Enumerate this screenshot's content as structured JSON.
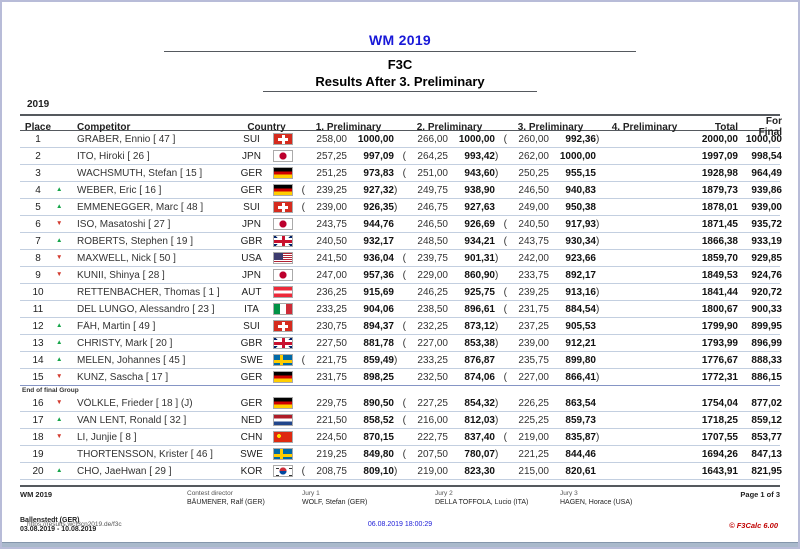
{
  "page": {
    "year_label": "2019",
    "title": "WM 2019",
    "subtitle1": "F3C",
    "subtitle2": "Results After 3. Preliminary"
  },
  "colors": {
    "title_blue": "#1818d8",
    "timestamp_blue": "#2020d8",
    "app_red": "#c00000",
    "trend_up_green": "#17a54a",
    "trend_down_red": "#d23b2f"
  },
  "table": {
    "headers": {
      "place": "Place",
      "competitor": "Competitor",
      "country": "Country",
      "p1": "1. Preliminary",
      "p2": "2. Preliminary",
      "p3": "3. Preliminary",
      "p4": "4. Preliminary",
      "total": "Total",
      "for_final": "For Final"
    },
    "trend_icons": {
      "up": "▲",
      "down": "▼"
    },
    "paren_open": "(",
    "paren_close": ")",
    "group_break": {
      "before_index": 15,
      "label": "End of final Group"
    },
    "rows": [
      {
        "place": "1",
        "trend": "",
        "competitor": "GRABER, Ennio  [ 47 ]",
        "country": "SUI",
        "p1": {
          "raw": "258,00",
          "pts": "1000,00",
          "drop": false
        },
        "p2": {
          "raw": "266,00",
          "pts": "1000,00",
          "drop": false
        },
        "p3": {
          "raw": "260,00",
          "pts": "992,36",
          "drop": true
        },
        "total": "2000,00",
        "for_final": "1000,00"
      },
      {
        "place": "2",
        "trend": "",
        "competitor": "ITO, Hiroki  [ 26 ]",
        "country": "JPN",
        "p1": {
          "raw": "257,25",
          "pts": "997,09",
          "drop": false
        },
        "p2": {
          "raw": "264,25",
          "pts": "993,42",
          "drop": true
        },
        "p3": {
          "raw": "262,00",
          "pts": "1000,00",
          "drop": false
        },
        "total": "1997,09",
        "for_final": "998,54"
      },
      {
        "place": "3",
        "trend": "",
        "competitor": "WACHSMUTH, Stefan  [ 15 ]",
        "country": "GER",
        "p1": {
          "raw": "251,25",
          "pts": "973,83",
          "drop": false
        },
        "p2": {
          "raw": "251,00",
          "pts": "943,60",
          "drop": true
        },
        "p3": {
          "raw": "250,25",
          "pts": "955,15",
          "drop": false
        },
        "total": "1928,98",
        "for_final": "964,49"
      },
      {
        "place": "4",
        "trend": "up",
        "competitor": "WEBER, Eric  [ 16 ]",
        "country": "GER",
        "p1": {
          "raw": "239,25",
          "pts": "927,32",
          "drop": true
        },
        "p2": {
          "raw": "249,75",
          "pts": "938,90",
          "drop": false
        },
        "p3": {
          "raw": "246,50",
          "pts": "940,83",
          "drop": false
        },
        "total": "1879,73",
        "for_final": "939,86"
      },
      {
        "place": "5",
        "trend": "up",
        "competitor": "EMMENEGGER, Marc  [ 48 ]",
        "country": "SUI",
        "p1": {
          "raw": "239,00",
          "pts": "926,35",
          "drop": true
        },
        "p2": {
          "raw": "246,75",
          "pts": "927,63",
          "drop": false
        },
        "p3": {
          "raw": "249,00",
          "pts": "950,38",
          "drop": false
        },
        "total": "1878,01",
        "for_final": "939,00"
      },
      {
        "place": "6",
        "trend": "down",
        "competitor": "ISO, Masatoshi  [ 27 ]",
        "country": "JPN",
        "p1": {
          "raw": "243,75",
          "pts": "944,76",
          "drop": false
        },
        "p2": {
          "raw": "246,50",
          "pts": "926,69",
          "drop": false
        },
        "p3": {
          "raw": "240,50",
          "pts": "917,93",
          "drop": true
        },
        "total": "1871,45",
        "for_final": "935,72"
      },
      {
        "place": "7",
        "trend": "up",
        "competitor": "ROBERTS, Stephen  [ 19 ]",
        "country": "GBR",
        "p1": {
          "raw": "240,50",
          "pts": "932,17",
          "drop": false
        },
        "p2": {
          "raw": "248,50",
          "pts": "934,21",
          "drop": false
        },
        "p3": {
          "raw": "243,75",
          "pts": "930,34",
          "drop": true
        },
        "total": "1866,38",
        "for_final": "933,19"
      },
      {
        "place": "8",
        "trend": "down",
        "competitor": "MAXWELL, Nick  [ 50 ]",
        "country": "USA",
        "p1": {
          "raw": "241,50",
          "pts": "936,04",
          "drop": false
        },
        "p2": {
          "raw": "239,75",
          "pts": "901,31",
          "drop": true
        },
        "p3": {
          "raw": "242,00",
          "pts": "923,66",
          "drop": false
        },
        "total": "1859,70",
        "for_final": "929,85"
      },
      {
        "place": "9",
        "trend": "down",
        "competitor": "KUNII, Shinya  [ 28 ]",
        "country": "JPN",
        "p1": {
          "raw": "247,00",
          "pts": "957,36",
          "drop": false
        },
        "p2": {
          "raw": "229,00",
          "pts": "860,90",
          "drop": true
        },
        "p3": {
          "raw": "233,75",
          "pts": "892,17",
          "drop": false
        },
        "total": "1849,53",
        "for_final": "924,76"
      },
      {
        "place": "10",
        "trend": "",
        "competitor": "RETTENBACHER, Thomas  [ 1 ]",
        "country": "AUT",
        "p1": {
          "raw": "236,25",
          "pts": "915,69",
          "drop": false
        },
        "p2": {
          "raw": "246,25",
          "pts": "925,75",
          "drop": false
        },
        "p3": {
          "raw": "239,25",
          "pts": "913,16",
          "drop": true
        },
        "total": "1841,44",
        "for_final": "920,72"
      },
      {
        "place": "11",
        "trend": "",
        "competitor": "DEL LUNGO, Alessandro  [ 23 ]",
        "country": "ITA",
        "p1": {
          "raw": "233,25",
          "pts": "904,06",
          "drop": false
        },
        "p2": {
          "raw": "238,50",
          "pts": "896,61",
          "drop": false
        },
        "p3": {
          "raw": "231,75",
          "pts": "884,54",
          "drop": true
        },
        "total": "1800,67",
        "for_final": "900,33"
      },
      {
        "place": "12",
        "trend": "up",
        "competitor": "FÄH, Martin  [ 49 ]",
        "country": "SUI",
        "p1": {
          "raw": "230,75",
          "pts": "894,37",
          "drop": false
        },
        "p2": {
          "raw": "232,25",
          "pts": "873,12",
          "drop": true
        },
        "p3": {
          "raw": "237,25",
          "pts": "905,53",
          "drop": false
        },
        "total": "1799,90",
        "for_final": "899,95"
      },
      {
        "place": "13",
        "trend": "up",
        "competitor": "CHRISTY, Mark  [ 20 ]",
        "country": "GBR",
        "p1": {
          "raw": "227,50",
          "pts": "881,78",
          "drop": false
        },
        "p2": {
          "raw": "227,00",
          "pts": "853,38",
          "drop": true
        },
        "p3": {
          "raw": "239,00",
          "pts": "912,21",
          "drop": false
        },
        "total": "1793,99",
        "for_final": "896,99"
      },
      {
        "place": "14",
        "trend": "up",
        "competitor": "MELEN, Johannes  [ 45 ]",
        "country": "SWE",
        "p1": {
          "raw": "221,75",
          "pts": "859,49",
          "drop": true
        },
        "p2": {
          "raw": "233,25",
          "pts": "876,87",
          "drop": false
        },
        "p3": {
          "raw": "235,75",
          "pts": "899,80",
          "drop": false
        },
        "total": "1776,67",
        "for_final": "888,33"
      },
      {
        "place": "15",
        "trend": "down",
        "competitor": "KUNZ, Sascha  [ 17 ]",
        "country": "GER",
        "p1": {
          "raw": "231,75",
          "pts": "898,25",
          "drop": false
        },
        "p2": {
          "raw": "232,50",
          "pts": "874,06",
          "drop": false
        },
        "p3": {
          "raw": "227,00",
          "pts": "866,41",
          "drop": true
        },
        "total": "1772,31",
        "for_final": "886,15"
      },
      {
        "place": "16",
        "trend": "down",
        "competitor": "VÖLKLE, Frieder  [ 18 ] (J)",
        "country": "GER",
        "p1": {
          "raw": "229,75",
          "pts": "890,50",
          "drop": false
        },
        "p2": {
          "raw": "227,25",
          "pts": "854,32",
          "drop": true
        },
        "p3": {
          "raw": "226,25",
          "pts": "863,54",
          "drop": false
        },
        "total": "1754,04",
        "for_final": "877,02"
      },
      {
        "place": "17",
        "trend": "up",
        "competitor": "VAN LENT, Ronald  [ 32 ]",
        "country": "NED",
        "p1": {
          "raw": "221,50",
          "pts": "858,52",
          "drop": false
        },
        "p2": {
          "raw": "216,00",
          "pts": "812,03",
          "drop": true
        },
        "p3": {
          "raw": "225,25",
          "pts": "859,73",
          "drop": false
        },
        "total": "1718,25",
        "for_final": "859,12"
      },
      {
        "place": "18",
        "trend": "down",
        "competitor": "LI, Junjie  [ 8 ]",
        "country": "CHN",
        "p1": {
          "raw": "224,50",
          "pts": "870,15",
          "drop": false
        },
        "p2": {
          "raw": "222,75",
          "pts": "837,40",
          "drop": false
        },
        "p3": {
          "raw": "219,00",
          "pts": "835,87",
          "drop": true
        },
        "total": "1707,55",
        "for_final": "853,77"
      },
      {
        "place": "19",
        "trend": "",
        "competitor": "THORTENSSON, Krister  [ 46 ]",
        "country": "SWE",
        "p1": {
          "raw": "219,25",
          "pts": "849,80",
          "drop": false
        },
        "p2": {
          "raw": "207,50",
          "pts": "780,07",
          "drop": true
        },
        "p3": {
          "raw": "221,25",
          "pts": "844,46",
          "drop": false
        },
        "total": "1694,26",
        "for_final": "847,13"
      },
      {
        "place": "20",
        "trend": "up",
        "competitor": "CHO, JaeHwan  [ 29 ]",
        "country": "KOR",
        "p1": {
          "raw": "208,75",
          "pts": "809,10",
          "drop": true
        },
        "p2": {
          "raw": "219,00",
          "pts": "823,30",
          "drop": false
        },
        "p3": {
          "raw": "215,00",
          "pts": "820,61",
          "drop": false
        },
        "total": "1643,91",
        "for_final": "821,95"
      }
    ]
  },
  "footer": {
    "event": "WM 2019",
    "contest_director_label": "Contest director",
    "contest_director": "BÄUMENER, Ralf (GER)",
    "jury1_label": "Jury 1",
    "jury1": "WOLF, Stefan (GER)",
    "jury2_label": "Jury 2",
    "jury2": "DELLA TOFFOLA, Lucio (ITA)",
    "jury3_label": "Jury 3",
    "jury3": "HAGEN, Horace (USA)",
    "page_number": "Page 1 of 3",
    "venue": "Ballenstedt (GER)",
    "dates": "03.08.2019 - 10.08.2019",
    "url": "https://results.wcf3cn2019.de/f3c",
    "timestamp": "06.08.2019 18:00:29",
    "app_credit": "© F3Calc 6.00"
  }
}
